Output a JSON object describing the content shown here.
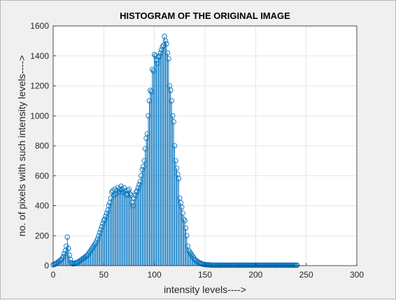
{
  "colors": {
    "figure_bg": "#f0f0f0",
    "axes_bg": "#ffffff",
    "grid": "#dfdfdf",
    "axis": "#262626",
    "series": "#0072bd"
  },
  "chart_data": {
    "type": "stem",
    "title": "HISTOGRAM OF THE ORIGINAL IMAGE",
    "xlabel": "intensity levels---->",
    "ylabel": "no. of pixels with such intensity levels---->",
    "xlim": [
      0,
      300
    ],
    "ylim": [
      0,
      1600
    ],
    "xticks": [
      0,
      50,
      100,
      150,
      200,
      250,
      300
    ],
    "yticks": [
      0,
      200,
      400,
      600,
      800,
      1000,
      1200,
      1400,
      1600
    ],
    "grid": true,
    "marker": "circle",
    "x_start": 0,
    "values": [
      5,
      8,
      12,
      15,
      20,
      25,
      30,
      35,
      40,
      50,
      60,
      80,
      100,
      130,
      190,
      115,
      70,
      40,
      20,
      15,
      12,
      15,
      18,
      20,
      22,
      25,
      30,
      35,
      40,
      45,
      50,
      55,
      60,
      65,
      70,
      80,
      90,
      100,
      110,
      120,
      130,
      140,
      150,
      165,
      180,
      200,
      220,
      240,
      260,
      280,
      300,
      310,
      330,
      350,
      370,
      400,
      420,
      450,
      490,
      500,
      470,
      510,
      480,
      500,
      520,
      490,
      510,
      530,
      510,
      490,
      520,
      500,
      480,
      470,
      500,
      510,
      480,
      470,
      420,
      400,
      450,
      470,
      490,
      500,
      520,
      540,
      560,
      600,
      640,
      660,
      700,
      780,
      850,
      880,
      1000,
      1100,
      1170,
      1160,
      1310,
      1300,
      1410,
      1400,
      1370,
      1350,
      1390,
      1400,
      1420,
      1440,
      1460,
      1470,
      1530,
      1500,
      1480,
      1420,
      1380,
      1200,
      1170,
      1100,
      1000,
      960,
      800,
      700,
      650,
      610,
      580,
      450,
      420,
      390,
      350,
      310,
      300,
      250,
      200,
      130,
      100,
      90,
      80,
      70,
      60,
      50,
      40,
      35,
      30,
      25,
      20,
      18,
      15,
      12,
      10,
      8,
      8,
      6,
      6,
      5,
      5,
      4,
      4,
      3,
      3,
      3,
      3,
      3,
      3,
      3,
      3,
      3,
      3,
      3,
      3,
      3,
      3,
      3,
      3,
      3,
      3,
      3,
      3,
      3,
      3,
      3,
      3,
      3,
      3,
      3,
      3,
      3,
      3,
      3,
      3,
      3,
      3,
      3,
      3,
      3,
      3,
      3,
      3,
      3,
      3,
      3,
      3,
      3,
      3,
      3,
      3,
      3,
      3,
      3,
      3,
      3,
      3,
      3,
      3,
      3,
      3,
      3,
      3,
      3,
      3,
      3,
      3,
      3,
      3,
      3,
      3,
      3,
      3,
      3,
      3,
      3,
      3,
      3,
      3,
      3,
      3,
      3,
      3,
      3,
      3,
      3,
      3,
      3
    ]
  }
}
